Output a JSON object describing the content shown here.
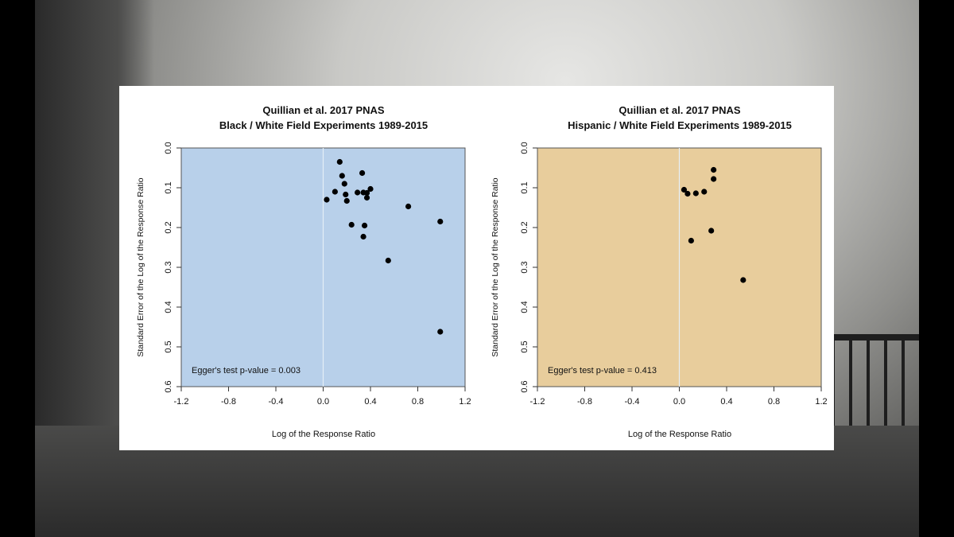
{
  "chart_data": [
    {
      "type": "scatter",
      "title": "Quillian et al. 2017 PNAS",
      "subtitle": "Black / White Field Experiments 1989-2015",
      "xlabel": "Log of the Response Ratio",
      "ylabel": "Standard Error of the Log of the Response Ratio",
      "xlim": [
        -1.2,
        1.2
      ],
      "ylim": [
        0.0,
        0.6
      ],
      "y_reversed": true,
      "xticks": [
        "-1.2",
        "-0.8",
        "-0.4",
        "0.0",
        "0.4",
        "0.8",
        "1.2"
      ],
      "yticks": [
        "0.0",
        "0.1",
        "0.2",
        "0.3",
        "0.4",
        "0.5",
        "0.6"
      ],
      "background_color": "#b8d0ea",
      "annotation": "Egger's test p-value = 0.003",
      "points": [
        {
          "x": 0.14,
          "y": 0.035
        },
        {
          "x": 0.33,
          "y": 0.063
        },
        {
          "x": 0.16,
          "y": 0.07
        },
        {
          "x": 0.18,
          "y": 0.09
        },
        {
          "x": 0.4,
          "y": 0.103
        },
        {
          "x": 0.1,
          "y": 0.11
        },
        {
          "x": 0.29,
          "y": 0.112
        },
        {
          "x": 0.34,
          "y": 0.112
        },
        {
          "x": 0.19,
          "y": 0.117
        },
        {
          "x": 0.37,
          "y": 0.113
        },
        {
          "x": 0.37,
          "y": 0.125
        },
        {
          "x": 0.03,
          "y": 0.13
        },
        {
          "x": 0.2,
          "y": 0.133
        },
        {
          "x": 0.72,
          "y": 0.147
        },
        {
          "x": 0.99,
          "y": 0.185
        },
        {
          "x": 0.24,
          "y": 0.193
        },
        {
          "x": 0.35,
          "y": 0.195
        },
        {
          "x": 0.34,
          "y": 0.223
        },
        {
          "x": 0.55,
          "y": 0.283
        },
        {
          "x": 0.99,
          "y": 0.462
        }
      ]
    },
    {
      "type": "scatter",
      "title": "Quillian et al. 2017 PNAS",
      "subtitle": "Hispanic / White Field Experiments 1989-2015",
      "xlabel": "Log of the Response Ratio",
      "ylabel": "Standard Error of the Log of the Response Ratio",
      "xlim": [
        -1.2,
        1.2
      ],
      "ylim": [
        0.0,
        0.6
      ],
      "y_reversed": true,
      "xticks": [
        "-1.2",
        "-0.8",
        "-0.4",
        "0.0",
        "0.4",
        "0.8",
        "1.2"
      ],
      "yticks": [
        "0.0",
        "0.1",
        "0.2",
        "0.3",
        "0.4",
        "0.5",
        "0.6"
      ],
      "background_color": "#e8cd9c",
      "annotation": "Egger's test p-value = 0.413",
      "points": [
        {
          "x": 0.29,
          "y": 0.055
        },
        {
          "x": 0.29,
          "y": 0.078
        },
        {
          "x": 0.04,
          "y": 0.105
        },
        {
          "x": 0.21,
          "y": 0.11
        },
        {
          "x": 0.14,
          "y": 0.114
        },
        {
          "x": 0.07,
          "y": 0.115
        },
        {
          "x": 0.27,
          "y": 0.208
        },
        {
          "x": 0.1,
          "y": 0.233
        },
        {
          "x": 0.54,
          "y": 0.332
        }
      ]
    }
  ]
}
